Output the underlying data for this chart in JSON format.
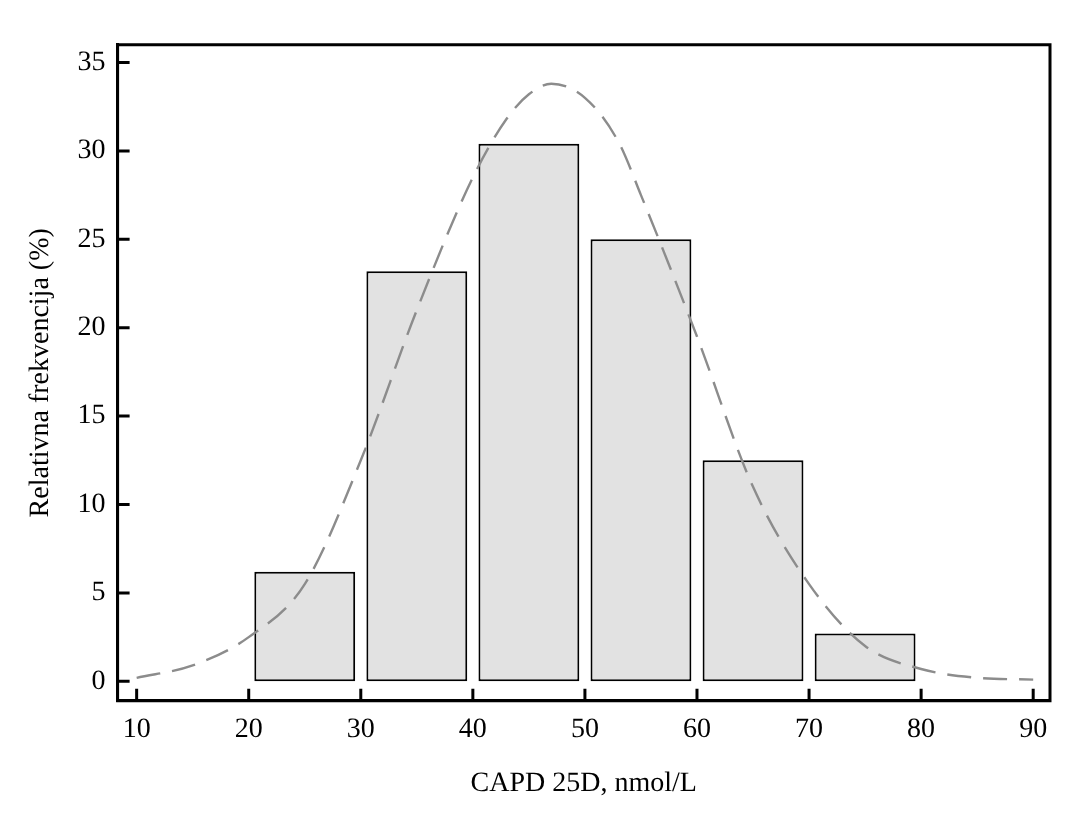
{
  "chart_data": {
    "type": "histogram",
    "xlabel": "CAPD 25D, nmol/L",
    "ylabel": "Relativna frekvencija (%)",
    "bins": [
      20,
      30,
      40,
      50,
      60,
      70,
      80
    ],
    "values": [
      6.2,
      23.2,
      30.4,
      25.0,
      12.5,
      2.7
    ],
    "color": "#e2e2e2",
    "series": [
      {
        "type": "line",
        "color": "#8c8c8c",
        "line_style": "dashed",
        "marker": "none",
        "x": [
          10,
          15,
          20,
          25,
          30,
          35,
          40,
          43,
          45,
          47,
          50,
          53,
          55,
          60,
          65,
          70,
          75,
          80,
          85,
          90
        ],
        "values": [
          0.2,
          0.9,
          2.5,
          5.5,
          12.5,
          21,
          28.5,
          31.8,
          33.2,
          33.8,
          33,
          30.5,
          27.5,
          19.5,
          11,
          5.5,
          2,
          0.7,
          0.2,
          0.1
        ]
      }
    ],
    "xlim": [
      8.3,
      91.5
    ],
    "ylim": [
      -1.1,
      36
    ],
    "xticks": [
      10,
      20,
      30,
      40,
      50,
      60,
      70,
      80,
      90
    ],
    "yticks": [
      0,
      5,
      10,
      15,
      20,
      25,
      30,
      35
    ],
    "grid": false,
    "legend": false
  }
}
